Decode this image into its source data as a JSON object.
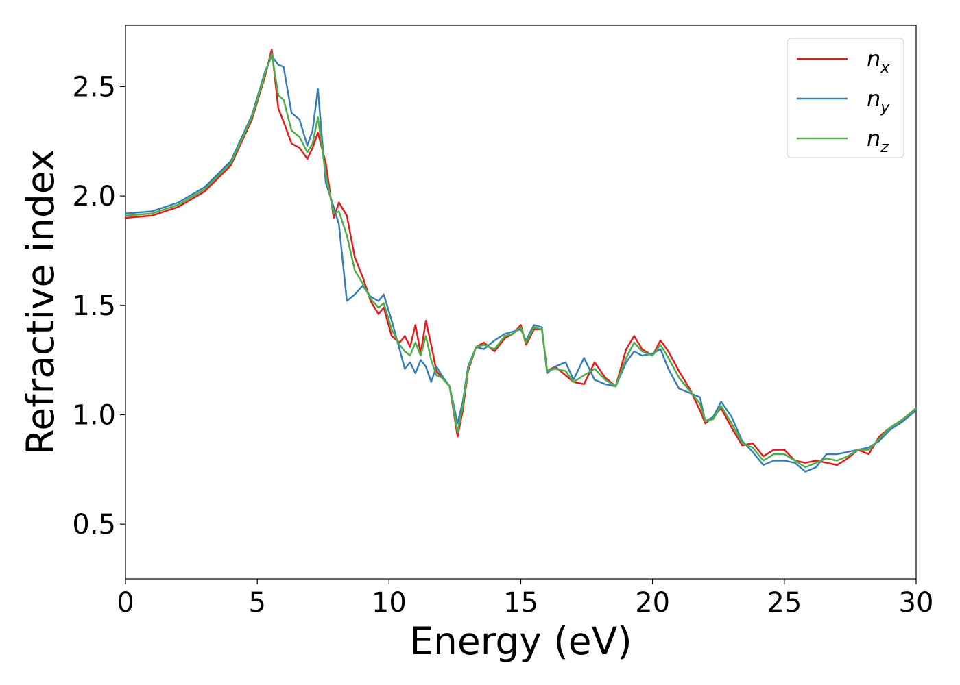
{
  "chart_data": {
    "type": "line",
    "xlabel": "Energy (eV)",
    "ylabel": "Refractive index",
    "xlim": [
      0,
      30
    ],
    "ylim": [
      0.25,
      2.78
    ],
    "xticks": [
      0,
      5,
      10,
      15,
      20,
      25,
      30
    ],
    "xtick_labels": [
      "0",
      "5",
      "10",
      "15",
      "20",
      "25",
      "30"
    ],
    "yticks": [
      0.5,
      1.0,
      1.5,
      2.0,
      2.5
    ],
    "ytick_labels": [
      "0.5",
      "1.0",
      "1.5",
      "2.0",
      "2.5"
    ],
    "grid": false,
    "legend_position": "top-right",
    "series": [
      {
        "name": "n_x",
        "legend_base": "n",
        "legend_sub": "x",
        "color": "#e41a1c",
        "x": [
          0,
          1,
          2,
          3,
          4,
          4.8,
          5.3,
          5.55,
          5.8,
          6.0,
          6.3,
          6.6,
          6.9,
          7.1,
          7.3,
          7.6,
          7.9,
          8.1,
          8.4,
          8.7,
          9.0,
          9.3,
          9.6,
          9.8,
          10.1,
          10.4,
          10.6,
          10.8,
          11.0,
          11.2,
          11.4,
          11.6,
          11.8,
          12.0,
          12.3,
          12.6,
          12.8,
          13.0,
          13.3,
          13.6,
          14.0,
          14.4,
          14.7,
          15.0,
          15.2,
          15.5,
          15.8,
          16.0,
          16.3,
          16.7,
          17.0,
          17.4,
          17.8,
          18.2,
          18.6,
          19.0,
          19.3,
          19.6,
          20.0,
          20.3,
          20.6,
          21.0,
          21.4,
          21.8,
          22.0,
          22.3,
          22.6,
          23.0,
          23.4,
          23.8,
          24.2,
          24.6,
          25.0,
          25.4,
          25.8,
          26.2,
          26.6,
          27.0,
          27.4,
          27.8,
          28.2,
          28.6,
          29.0,
          29.5,
          30.0
        ],
        "y": [
          1.9,
          1.91,
          1.95,
          2.02,
          2.14,
          2.35,
          2.55,
          2.67,
          2.4,
          2.34,
          2.24,
          2.22,
          2.17,
          2.22,
          2.29,
          2.15,
          1.9,
          1.97,
          1.91,
          1.72,
          1.63,
          1.52,
          1.46,
          1.49,
          1.36,
          1.33,
          1.36,
          1.31,
          1.41,
          1.28,
          1.43,
          1.32,
          1.2,
          1.17,
          1.13,
          0.9,
          1.02,
          1.2,
          1.31,
          1.33,
          1.29,
          1.35,
          1.37,
          1.41,
          1.32,
          1.39,
          1.39,
          1.2,
          1.22,
          1.18,
          1.15,
          1.14,
          1.24,
          1.17,
          1.13,
          1.3,
          1.36,
          1.3,
          1.27,
          1.34,
          1.29,
          1.2,
          1.12,
          1.02,
          0.96,
          0.99,
          1.03,
          0.94,
          0.86,
          0.87,
          0.81,
          0.84,
          0.84,
          0.79,
          0.78,
          0.79,
          0.78,
          0.77,
          0.8,
          0.84,
          0.82,
          0.9,
          0.94,
          0.98,
          1.03
        ]
      },
      {
        "name": "n_y",
        "legend_base": "n",
        "legend_sub": "y",
        "color": "#377eb8",
        "x": [
          0,
          1,
          2,
          3,
          4,
          4.8,
          5.3,
          5.55,
          5.8,
          6.0,
          6.3,
          6.6,
          6.9,
          7.1,
          7.3,
          7.6,
          7.9,
          8.1,
          8.4,
          8.7,
          9.0,
          9.3,
          9.6,
          9.8,
          10.1,
          10.4,
          10.6,
          10.8,
          11.0,
          11.2,
          11.4,
          11.6,
          11.8,
          12.0,
          12.3,
          12.6,
          12.8,
          13.0,
          13.3,
          13.6,
          14.0,
          14.4,
          14.7,
          15.0,
          15.2,
          15.5,
          15.8,
          16.0,
          16.3,
          16.7,
          17.0,
          17.4,
          17.8,
          18.2,
          18.6,
          19.0,
          19.3,
          19.6,
          20.0,
          20.3,
          20.6,
          21.0,
          21.4,
          21.8,
          22.0,
          22.3,
          22.6,
          23.0,
          23.4,
          23.8,
          24.2,
          24.6,
          25.0,
          25.4,
          25.8,
          26.2,
          26.6,
          27.0,
          27.4,
          27.8,
          28.2,
          28.6,
          29.0,
          29.5,
          30.0
        ],
        "y": [
          1.92,
          1.93,
          1.97,
          2.04,
          2.16,
          2.37,
          2.57,
          2.64,
          2.6,
          2.59,
          2.38,
          2.35,
          2.23,
          2.3,
          2.49,
          2.06,
          1.95,
          1.87,
          1.52,
          1.55,
          1.59,
          1.54,
          1.52,
          1.55,
          1.43,
          1.3,
          1.21,
          1.24,
          1.19,
          1.25,
          1.22,
          1.15,
          1.22,
          1.18,
          1.13,
          0.96,
          1.06,
          1.22,
          1.31,
          1.3,
          1.34,
          1.37,
          1.38,
          1.39,
          1.34,
          1.41,
          1.4,
          1.19,
          1.22,
          1.24,
          1.16,
          1.26,
          1.16,
          1.14,
          1.13,
          1.24,
          1.29,
          1.27,
          1.28,
          1.3,
          1.21,
          1.12,
          1.1,
          1.08,
          0.97,
          0.99,
          1.06,
          0.99,
          0.88,
          0.83,
          0.77,
          0.79,
          0.79,
          0.78,
          0.74,
          0.76,
          0.82,
          0.82,
          0.83,
          0.84,
          0.85,
          0.88,
          0.93,
          0.97,
          1.02
        ]
      },
      {
        "name": "n_z",
        "legend_base": "n",
        "legend_sub": "z",
        "color": "#4daf4a",
        "x": [
          0,
          1,
          2,
          3,
          4,
          4.8,
          5.3,
          5.55,
          5.8,
          6.0,
          6.3,
          6.6,
          6.9,
          7.1,
          7.3,
          7.6,
          7.9,
          8.1,
          8.4,
          8.7,
          9.0,
          9.3,
          9.6,
          9.8,
          10.1,
          10.4,
          10.6,
          10.8,
          11.0,
          11.2,
          11.4,
          11.6,
          11.8,
          12.0,
          12.3,
          12.6,
          12.8,
          13.0,
          13.3,
          13.6,
          14.0,
          14.4,
          14.7,
          15.0,
          15.2,
          15.5,
          15.8,
          16.0,
          16.3,
          16.7,
          17.0,
          17.4,
          17.8,
          18.2,
          18.6,
          19.0,
          19.3,
          19.6,
          20.0,
          20.3,
          20.6,
          21.0,
          21.4,
          21.8,
          22.0,
          22.3,
          22.6,
          23.0,
          23.4,
          23.8,
          24.2,
          24.6,
          25.0,
          25.4,
          25.8,
          26.2,
          26.6,
          27.0,
          27.4,
          27.8,
          28.2,
          28.6,
          29.0,
          29.5,
          30.0
        ],
        "y": [
          1.91,
          1.92,
          1.96,
          2.03,
          2.15,
          2.36,
          2.56,
          2.65,
          2.46,
          2.44,
          2.3,
          2.27,
          2.2,
          2.24,
          2.36,
          2.1,
          1.92,
          1.93,
          1.82,
          1.66,
          1.6,
          1.53,
          1.49,
          1.51,
          1.39,
          1.32,
          1.29,
          1.27,
          1.33,
          1.27,
          1.36,
          1.25,
          1.18,
          1.17,
          1.13,
          0.92,
          1.04,
          1.21,
          1.31,
          1.32,
          1.3,
          1.36,
          1.37,
          1.4,
          1.33,
          1.4,
          1.39,
          1.2,
          1.21,
          1.2,
          1.15,
          1.18,
          1.21,
          1.16,
          1.13,
          1.26,
          1.33,
          1.29,
          1.27,
          1.32,
          1.26,
          1.17,
          1.11,
          1.05,
          0.97,
          0.98,
          1.04,
          0.96,
          0.87,
          0.85,
          0.79,
          0.82,
          0.82,
          0.79,
          0.76,
          0.78,
          0.8,
          0.79,
          0.81,
          0.84,
          0.84,
          0.89,
          0.94,
          0.98,
          1.03
        ]
      }
    ]
  }
}
